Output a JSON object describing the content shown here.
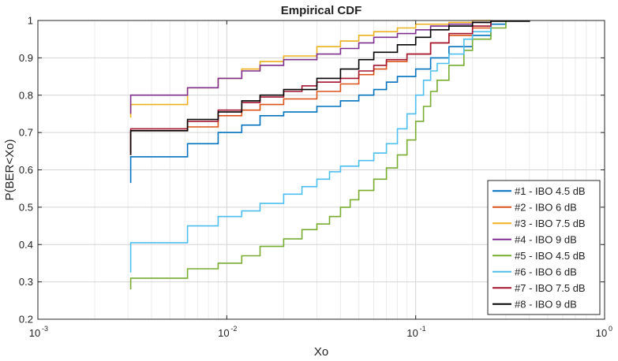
{
  "chart_data": {
    "type": "line",
    "step": true,
    "title": "Empirical CDF",
    "xlabel": "Xo",
    "ylabel": "P(BER<Xo)",
    "xscale": "log",
    "xlim": [
      0.001,
      1
    ],
    "ylim": [
      0.2,
      1
    ],
    "grid": true,
    "minor_grid": true,
    "legend_position": "bottom-right",
    "y_ticks": [
      "0.2",
      "0.3",
      "0.4",
      "0.5",
      "0.6",
      "0.7",
      "0.8",
      "0.9",
      "1"
    ],
    "x_ticks": [
      {
        "base": "10",
        "exp": "-3",
        "value": 0.001
      },
      {
        "base": "10",
        "exp": "-2",
        "value": 0.01
      },
      {
        "base": "10",
        "exp": "-1",
        "value": 0.1
      },
      {
        "base": "10",
        "exp": "0",
        "value": 1
      }
    ],
    "series": [
      {
        "name": "#1 - IBO 4.5 dB",
        "color": "#0072BD",
        "x": [
          0.0031,
          0.0031,
          0.0062,
          0.009,
          0.012,
          0.015,
          0.02,
          0.03,
          0.04,
          0.05,
          0.06,
          0.07,
          0.08,
          0.1,
          0.12,
          0.15,
          0.2,
          0.25,
          0.3
        ],
        "y": [
          0.565,
          0.635,
          0.67,
          0.7,
          0.72,
          0.745,
          0.755,
          0.77,
          0.785,
          0.8,
          0.815,
          0.835,
          0.85,
          0.87,
          0.9,
          0.93,
          0.96,
          0.99,
          1.0
        ]
      },
      {
        "name": "#2 - IBO 6 dB",
        "color": "#D95319",
        "x": [
          0.0031,
          0.0031,
          0.0062,
          0.009,
          0.012,
          0.015,
          0.02,
          0.03,
          0.04,
          0.05,
          0.06,
          0.07,
          0.09,
          0.12,
          0.15,
          0.2,
          0.25
        ],
        "y": [
          0.64,
          0.705,
          0.715,
          0.745,
          0.76,
          0.775,
          0.79,
          0.81,
          0.83,
          0.855,
          0.87,
          0.89,
          0.91,
          0.94,
          0.96,
          0.98,
          1.0
        ]
      },
      {
        "name": "#3 - IBO 7.5 dB",
        "color": "#EDB120",
        "x": [
          0.0031,
          0.0031,
          0.0062,
          0.009,
          0.012,
          0.015,
          0.02,
          0.03,
          0.04,
          0.05,
          0.06,
          0.08,
          0.1,
          0.15,
          0.2,
          0.25
        ],
        "y": [
          0.74,
          0.775,
          0.82,
          0.845,
          0.87,
          0.89,
          0.905,
          0.93,
          0.945,
          0.96,
          0.97,
          0.98,
          0.99,
          0.995,
          1.0,
          1.0
        ]
      },
      {
        "name": "#4 - IBO 9 dB",
        "color": "#7E2F8E",
        "x": [
          0.0031,
          0.0031,
          0.0062,
          0.009,
          0.012,
          0.015,
          0.02,
          0.03,
          0.04,
          0.05,
          0.06,
          0.08,
          0.1,
          0.12,
          0.15,
          0.2,
          0.25
        ],
        "y": [
          0.75,
          0.8,
          0.82,
          0.845,
          0.865,
          0.88,
          0.895,
          0.91,
          0.925,
          0.94,
          0.955,
          0.965,
          0.975,
          0.985,
          0.99,
          0.995,
          1.0
        ]
      },
      {
        "name": "#5 - IBO 4.5 dB",
        "color": "#77AC30",
        "x": [
          0.0031,
          0.0031,
          0.0062,
          0.009,
          0.012,
          0.015,
          0.02,
          0.025,
          0.03,
          0.035,
          0.04,
          0.045,
          0.05,
          0.06,
          0.07,
          0.08,
          0.09,
          0.1,
          0.11,
          0.12,
          0.13,
          0.15,
          0.18,
          0.2,
          0.25,
          0.3
        ],
        "y": [
          0.28,
          0.31,
          0.335,
          0.35,
          0.37,
          0.395,
          0.415,
          0.44,
          0.455,
          0.475,
          0.5,
          0.52,
          0.545,
          0.575,
          0.605,
          0.64,
          0.68,
          0.73,
          0.77,
          0.81,
          0.84,
          0.88,
          0.92,
          0.95,
          0.98,
          1.0
        ]
      },
      {
        "name": "#6 - IBO 6 dB",
        "color": "#4DBEEE",
        "x": [
          0.0031,
          0.0031,
          0.0062,
          0.009,
          0.012,
          0.015,
          0.02,
          0.025,
          0.03,
          0.035,
          0.04,
          0.05,
          0.06,
          0.07,
          0.08,
          0.09,
          0.1,
          0.11,
          0.12,
          0.13,
          0.15,
          0.18,
          0.2,
          0.25
        ],
        "y": [
          0.325,
          0.405,
          0.45,
          0.475,
          0.49,
          0.51,
          0.535,
          0.555,
          0.575,
          0.595,
          0.61,
          0.625,
          0.645,
          0.67,
          0.71,
          0.75,
          0.8,
          0.84,
          0.865,
          0.885,
          0.91,
          0.95,
          0.97,
          1.0
        ]
      },
      {
        "name": "#7 - IBO 7.5 dB",
        "color": "#A2142F",
        "x": [
          0.0031,
          0.0031,
          0.0062,
          0.009,
          0.012,
          0.015,
          0.02,
          0.025,
          0.03,
          0.04,
          0.05,
          0.06,
          0.07,
          0.09,
          0.12,
          0.15,
          0.2,
          0.25
        ],
        "y": [
          0.64,
          0.71,
          0.73,
          0.76,
          0.78,
          0.795,
          0.81,
          0.825,
          0.835,
          0.845,
          0.865,
          0.88,
          0.895,
          0.91,
          0.94,
          0.965,
          0.985,
          1.0
        ]
      },
      {
        "name": "#8 - IBO 9 dB",
        "color": "#000000",
        "x": [
          0.0031,
          0.0031,
          0.0062,
          0.009,
          0.012,
          0.015,
          0.02,
          0.03,
          0.04,
          0.05,
          0.06,
          0.08,
          0.1,
          0.12,
          0.15,
          0.2,
          0.25,
          0.4
        ],
        "y": [
          0.64,
          0.705,
          0.735,
          0.755,
          0.785,
          0.8,
          0.815,
          0.845,
          0.87,
          0.895,
          0.915,
          0.935,
          0.955,
          0.975,
          0.985,
          0.995,
          0.998,
          1.0
        ]
      }
    ]
  }
}
